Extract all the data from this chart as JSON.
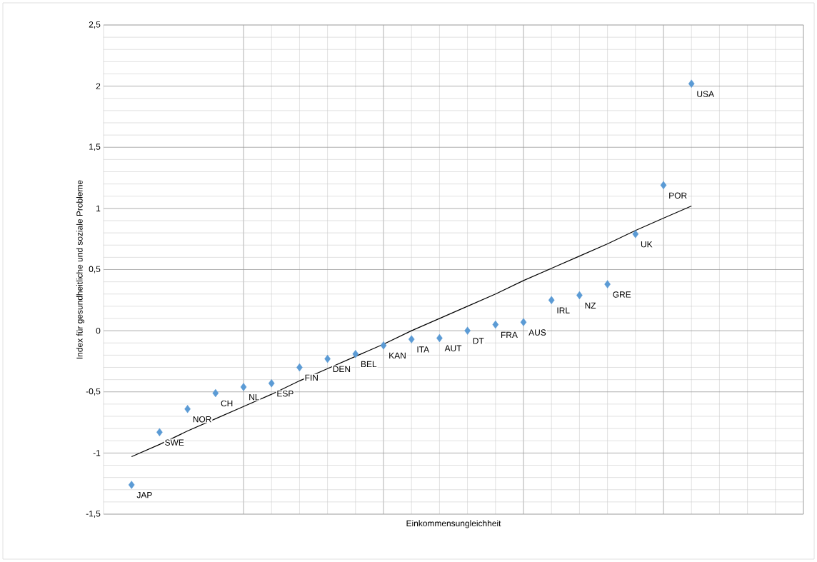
{
  "chart_data": {
    "type": "scatter",
    "xlabel": "Einkommensungleichheit",
    "ylabel": "Index für gesundheitliche und soziale Probleme",
    "ylim": [
      -1.5,
      2.5
    ],
    "categories": [
      null,
      null,
      null,
      null,
      null,
      null,
      null,
      null,
      null,
      null,
      null,
      null,
      null,
      null,
      null,
      null,
      null,
      null,
      null,
      null,
      null
    ],
    "yticks": [
      {
        "value": -1.5,
        "label": "-1,5"
      },
      {
        "value": -1,
        "label": "-1"
      },
      {
        "value": -0.5,
        "label": "-0,5"
      },
      {
        "value": 0,
        "label": "0"
      },
      {
        "value": 0.5,
        "label": "0,5"
      },
      {
        "value": 1,
        "label": "1"
      },
      {
        "value": 1.5,
        "label": "1,5"
      },
      {
        "value": 2,
        "label": "2"
      },
      {
        "value": 2.5,
        "label": "2,5"
      }
    ],
    "grid": true,
    "marker": "diamond",
    "series": [
      {
        "color": "#5b9bd5",
        "values": [
          -1.26,
          -0.83,
          -0.64,
          -0.51,
          -0.46,
          -0.43,
          -0.3,
          -0.23,
          -0.19,
          -0.12,
          -0.07,
          -0.06,
          0.0,
          0.05,
          0.07,
          0.25,
          0.29,
          0.38,
          0.79,
          1.19,
          2.02
        ],
        "value_labels": [
          "JAP",
          "SWE",
          "NOR",
          "CH",
          "NL",
          "ESP",
          "FIN",
          "DEN",
          "BEL",
          "KAN",
          "ITA",
          "AUT",
          "DT",
          "FRA",
          "AUS",
          "IRL",
          "NZ",
          "GRE",
          "UK",
          "POR",
          "USA"
        ]
      },
      {
        "type": "line",
        "marker": "none",
        "color": "#000000",
        "values": [
          -1.03,
          -0.93,
          -0.82,
          -0.72,
          -0.62,
          -0.52,
          -0.41,
          -0.31,
          -0.21,
          -0.11,
          0.0,
          0.1,
          0.2,
          0.3,
          0.41,
          0.51,
          0.61,
          0.71,
          0.82,
          0.92,
          1.02
        ]
      }
    ]
  }
}
